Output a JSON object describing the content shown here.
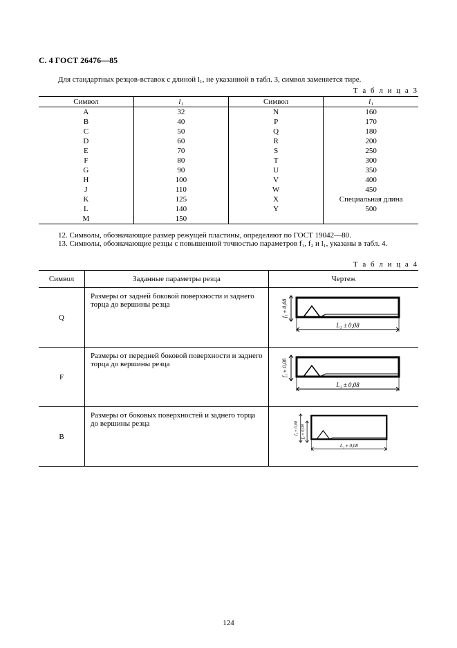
{
  "header": {
    "text": "С. 4 ГОСТ 26476—85"
  },
  "intro": "Для стандартных резцов-вставок с длиной l₁, не указанной в табл. 3, символ заменяется тире.",
  "table3": {
    "title": "Т а б л и ц а  3",
    "head": {
      "c1": "Символ",
      "c2": "l₁",
      "c3": "Символ",
      "c4": "l₁"
    },
    "rows": [
      {
        "s1": "A",
        "v1": "32",
        "s2": "N",
        "v2": "160"
      },
      {
        "s1": "B",
        "v1": "40",
        "s2": "P",
        "v2": "170"
      },
      {
        "s1": "C",
        "v1": "50",
        "s2": "Q",
        "v2": "180"
      },
      {
        "s1": "D",
        "v1": "60",
        "s2": "R",
        "v2": "200"
      },
      {
        "s1": "E",
        "v1": "70",
        "s2": "S",
        "v2": "250"
      },
      {
        "s1": "F",
        "v1": "80",
        "s2": "T",
        "v2": "300"
      },
      {
        "s1": "G",
        "v1": "90",
        "s2": "U",
        "v2": "350"
      },
      {
        "s1": "H",
        "v1": "100",
        "s2": "V",
        "v2": "400"
      },
      {
        "s1": "J",
        "v1": "110",
        "s2": "W",
        "v2": "450"
      },
      {
        "s1": "K",
        "v1": "125",
        "s2": "X",
        "v2": "Специальная длина"
      },
      {
        "s1": "L",
        "v1": "140",
        "s2": "Y",
        "v2": "500"
      },
      {
        "s1": "M",
        "v1": "150",
        "s2": "",
        "v2": ""
      }
    ]
  },
  "para12": "12. Символы, обозначающие размер режущей пластины, определяют по ГОСТ 19042—80.",
  "para13": "13. Символы, обозначающие резцы с повышенной точностью параметров f₁, f₂ и l₁, указаны в табл. 4.",
  "table4": {
    "title": "Т а б л и ц а  4",
    "head": {
      "c1": "Символ",
      "c2": "Заданные параметры резца",
      "c3": "Чертеж"
    },
    "rows": [
      {
        "s": "Q",
        "d": "Размеры от задней боковой поверхности и заднего торца до вершины резца",
        "arrows": 1
      },
      {
        "s": "F",
        "d": "Размеры от передней боковой поверхности и заднего торца до вершины резца",
        "arrows": 1
      },
      {
        "s": "B",
        "d": "Размеры от боковых поверхностей и заднего торца до вершины резца",
        "arrows": 2
      }
    ],
    "label_f1": "f₁ ± 0,08",
    "label_f2": "f₂ ± 0,08",
    "label_l1": "L₁ ± 0,08"
  },
  "footer": {
    "page": "124"
  },
  "colors": {
    "bg": "#ffffff",
    "text": "#000000",
    "line": "#000000"
  },
  "fonts": {
    "body_size": 11,
    "header_size": 12
  }
}
